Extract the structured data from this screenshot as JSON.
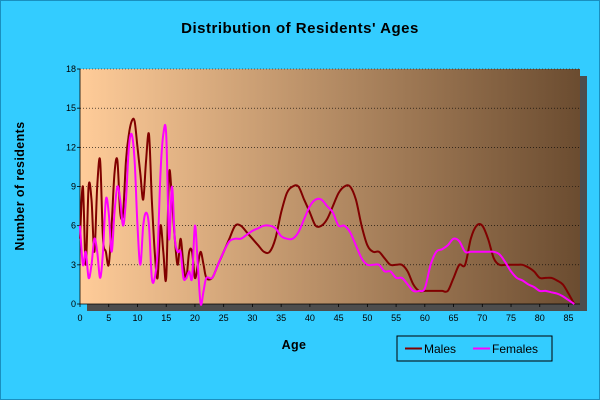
{
  "chart_data": {
    "type": "line",
    "title": "Distribution of Residents' Ages",
    "xlabel": "Age",
    "ylabel": "Number of residents",
    "xlim": [
      0,
      87
    ],
    "ylim": [
      0,
      18
    ],
    "xticks": [
      0,
      5,
      10,
      15,
      20,
      25,
      30,
      35,
      40,
      45,
      50,
      55,
      60,
      65,
      70,
      75,
      80,
      85
    ],
    "yticks": [
      0,
      3,
      6,
      9,
      12,
      15,
      18
    ],
    "grid": "horizontal",
    "legend": "bottom-right",
    "background_gradient": [
      "#ffcc99",
      "#6b4c30"
    ],
    "series": [
      {
        "name": "Males",
        "color": "#800000",
        "points": [
          [
            0,
            5
          ],
          [
            0.5,
            9
          ],
          [
            1,
            3
          ],
          [
            1.5,
            9
          ],
          [
            2,
            8
          ],
          [
            2.5,
            4
          ],
          [
            3,
            9
          ],
          [
            3.5,
            11
          ],
          [
            4,
            5
          ],
          [
            4.5,
            4
          ],
          [
            5,
            3
          ],
          [
            5.5,
            6
          ],
          [
            6,
            10
          ],
          [
            6.5,
            11
          ],
          [
            7,
            7
          ],
          [
            7.5,
            7
          ],
          [
            8,
            11
          ],
          [
            8.5,
            13
          ],
          [
            9,
            14
          ],
          [
            9.5,
            14
          ],
          [
            10,
            12
          ],
          [
            10.5,
            10
          ],
          [
            11,
            8
          ],
          [
            11.5,
            11
          ],
          [
            12,
            13
          ],
          [
            12.5,
            8
          ],
          [
            13,
            4
          ],
          [
            13.5,
            2
          ],
          [
            14,
            6
          ],
          [
            14.5,
            4
          ],
          [
            15,
            2
          ],
          [
            15.5,
            10
          ],
          [
            16,
            8
          ],
          [
            16.5,
            5
          ],
          [
            17,
            3
          ],
          [
            17.5,
            5
          ],
          [
            18,
            3
          ],
          [
            18.5,
            2
          ],
          [
            19,
            4
          ],
          [
            19.5,
            4
          ],
          [
            20,
            2
          ],
          [
            20.5,
            3
          ],
          [
            21,
            4
          ],
          [
            21.5,
            3
          ],
          [
            22,
            2
          ],
          [
            23,
            2
          ],
          [
            24,
            3
          ],
          [
            25,
            4
          ],
          [
            26,
            5
          ],
          [
            27,
            6
          ],
          [
            28,
            6
          ],
          [
            29,
            5.5
          ],
          [
            30,
            5
          ],
          [
            31,
            4.5
          ],
          [
            32,
            4
          ],
          [
            33,
            4
          ],
          [
            34,
            5
          ],
          [
            35,
            7
          ],
          [
            36,
            8.5
          ],
          [
            37,
            9
          ],
          [
            38,
            9
          ],
          [
            39,
            8
          ],
          [
            40,
            7
          ],
          [
            41,
            6
          ],
          [
            42,
            6
          ],
          [
            43,
            6.5
          ],
          [
            44,
            7.5
          ],
          [
            45,
            8.5
          ],
          [
            46,
            9
          ],
          [
            47,
            9
          ],
          [
            48,
            8
          ],
          [
            49,
            6
          ],
          [
            50,
            4.5
          ],
          [
            51,
            4
          ],
          [
            52,
            4
          ],
          [
            53,
            3.5
          ],
          [
            54,
            3
          ],
          [
            55,
            3
          ],
          [
            56,
            3
          ],
          [
            57,
            2.5
          ],
          [
            58,
            1.5
          ],
          [
            59,
            1
          ],
          [
            60,
            1
          ],
          [
            61,
            1
          ],
          [
            62,
            1
          ],
          [
            63,
            1
          ],
          [
            64,
            1
          ],
          [
            65,
            2
          ],
          [
            66,
            3
          ],
          [
            67,
            3
          ],
          [
            68,
            5
          ],
          [
            69,
            6
          ],
          [
            70,
            6
          ],
          [
            71,
            5
          ],
          [
            72,
            3.5
          ],
          [
            73,
            3
          ],
          [
            74,
            3
          ],
          [
            75,
            3
          ],
          [
            76,
            3
          ],
          [
            77,
            3
          ],
          [
            78,
            2.8
          ],
          [
            79,
            2.5
          ],
          [
            80,
            2
          ],
          [
            81,
            2
          ],
          [
            82,
            2
          ],
          [
            83,
            1.8
          ],
          [
            84,
            1.5
          ],
          [
            85,
            0.8
          ],
          [
            86,
            0
          ]
        ]
      },
      {
        "name": "Females",
        "color": "#ff00ff",
        "points": [
          [
            0,
            6
          ],
          [
            0.5,
            3
          ],
          [
            1,
            4
          ],
          [
            1.5,
            2
          ],
          [
            2,
            3
          ],
          [
            2.5,
            5
          ],
          [
            3,
            4
          ],
          [
            3.5,
            2
          ],
          [
            4,
            4
          ],
          [
            4.5,
            8
          ],
          [
            5,
            7
          ],
          [
            5.5,
            4
          ],
          [
            6,
            7
          ],
          [
            6.5,
            9
          ],
          [
            7,
            8
          ],
          [
            7.5,
            6
          ],
          [
            8,
            8
          ],
          [
            8.5,
            12
          ],
          [
            9,
            13
          ],
          [
            9.5,
            11
          ],
          [
            10,
            6
          ],
          [
            10.5,
            3
          ],
          [
            11,
            6
          ],
          [
            11.5,
            7
          ],
          [
            12,
            6
          ],
          [
            12.5,
            2
          ],
          [
            13,
            2
          ],
          [
            13.5,
            4
          ],
          [
            14,
            10
          ],
          [
            14.5,
            13
          ],
          [
            15,
            13
          ],
          [
            15.5,
            5
          ],
          [
            16,
            9
          ],
          [
            16.5,
            5
          ],
          [
            17,
            4
          ],
          [
            17.5,
            4
          ],
          [
            18,
            2
          ],
          [
            18.5,
            2
          ],
          [
            19,
            2.5
          ],
          [
            19.5,
            2
          ],
          [
            20,
            6
          ],
          [
            20.5,
            3
          ],
          [
            21,
            0
          ],
          [
            21.5,
            1
          ],
          [
            22,
            2
          ],
          [
            23,
            2
          ],
          [
            24,
            3
          ],
          [
            25,
            4
          ],
          [
            26,
            4.8
          ],
          [
            27,
            5
          ],
          [
            28,
            5
          ],
          [
            29,
            5.3
          ],
          [
            30,
            5.6
          ],
          [
            31,
            5.8
          ],
          [
            32,
            6
          ],
          [
            33,
            6
          ],
          [
            34,
            5.8
          ],
          [
            35,
            5.2
          ],
          [
            36,
            5
          ],
          [
            37,
            5
          ],
          [
            38,
            5.5
          ],
          [
            39,
            6.5
          ],
          [
            40,
            7.5
          ],
          [
            41,
            8
          ],
          [
            42,
            8
          ],
          [
            43,
            7.5
          ],
          [
            44,
            7
          ],
          [
            45,
            6
          ],
          [
            46,
            6
          ],
          [
            47,
            5.5
          ],
          [
            48,
            4.5
          ],
          [
            49,
            3.5
          ],
          [
            50,
            3
          ],
          [
            51,
            3
          ],
          [
            52,
            3
          ],
          [
            53,
            2.5
          ],
          [
            54,
            2.5
          ],
          [
            55,
            2
          ],
          [
            56,
            2
          ],
          [
            57,
            1.5
          ],
          [
            58,
            1
          ],
          [
            59,
            1
          ],
          [
            60,
            1.2
          ],
          [
            61,
            3
          ],
          [
            62,
            4
          ],
          [
            63,
            4.2
          ],
          [
            64,
            4.5
          ],
          [
            65,
            5
          ],
          [
            66,
            4.8
          ],
          [
            67,
            4
          ],
          [
            68,
            4
          ],
          [
            69,
            4
          ],
          [
            70,
            4
          ],
          [
            71,
            4
          ],
          [
            72,
            4
          ],
          [
            73,
            3.8
          ],
          [
            74,
            3.2
          ],
          [
            75,
            2.5
          ],
          [
            76,
            2
          ],
          [
            77,
            1.8
          ],
          [
            78,
            1.5
          ],
          [
            79,
            1.3
          ],
          [
            80,
            1
          ],
          [
            81,
            1
          ],
          [
            82,
            0.9
          ],
          [
            83,
            0.8
          ],
          [
            84,
            0.6
          ],
          [
            85,
            0.3
          ],
          [
            86,
            0
          ]
        ]
      }
    ]
  }
}
